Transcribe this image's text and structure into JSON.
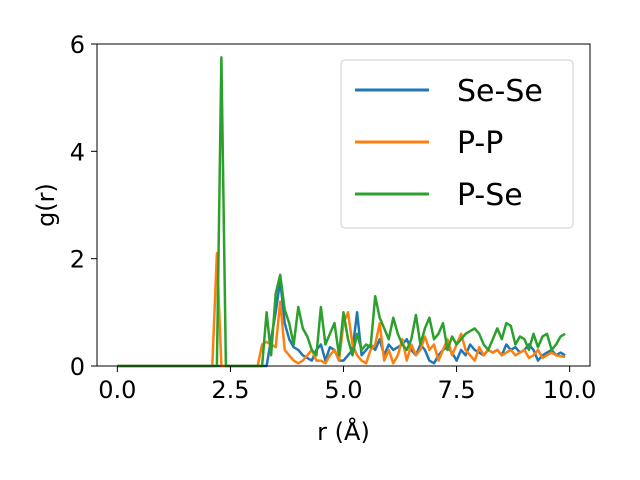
{
  "chart_data": {
    "type": "line",
    "title": "",
    "xlabel": "r (Å)",
    "ylabel": "g(r)",
    "xlim": [
      -0.45,
      10.45
    ],
    "ylim": [
      0,
      6
    ],
    "xticks": [
      0.0,
      2.5,
      5.0,
      7.5,
      10.0
    ],
    "xtick_labels": [
      "0.0",
      "2.5",
      "5.0",
      "7.5",
      "10.0"
    ],
    "yticks": [
      0,
      2,
      4,
      6
    ],
    "ytick_labels": [
      "0",
      "2",
      "4",
      "6"
    ],
    "grid": false,
    "legend_position": "top-right",
    "series": [
      {
        "name": "Se-Se",
        "color": "#1f77b4",
        "x": [
          0.0,
          3.2,
          3.3,
          3.4,
          3.5,
          3.6,
          3.7,
          3.8,
          3.9,
          4.0,
          4.1,
          4.2,
          4.3,
          4.4,
          4.5,
          4.6,
          4.7,
          4.8,
          4.9,
          5.0,
          5.1,
          5.2,
          5.3,
          5.4,
          5.5,
          5.6,
          5.7,
          5.8,
          5.9,
          6.0,
          6.1,
          6.2,
          6.3,
          6.4,
          6.5,
          6.6,
          6.7,
          6.8,
          6.9,
          7.0,
          7.1,
          7.2,
          7.3,
          7.4,
          7.5,
          7.6,
          7.7,
          7.8,
          7.9,
          8.0,
          8.1,
          8.2,
          8.3,
          8.4,
          8.5,
          8.6,
          8.7,
          8.8,
          8.9,
          9.0,
          9.1,
          9.2,
          9.3,
          9.4,
          9.5,
          9.6,
          9.7,
          9.8,
          9.9
        ],
        "y": [
          0.0,
          0.0,
          0.0,
          0.5,
          1.0,
          1.6,
          0.8,
          0.5,
          0.35,
          0.3,
          0.2,
          0.15,
          0.1,
          0.3,
          0.4,
          0.1,
          0.35,
          0.3,
          0.1,
          0.1,
          0.2,
          0.3,
          1.0,
          0.2,
          0.3,
          0.4,
          0.3,
          0.5,
          0.2,
          0.4,
          0.3,
          0.35,
          0.4,
          0.5,
          0.3,
          0.2,
          0.4,
          0.3,
          0.1,
          0.05,
          0.2,
          0.3,
          0.35,
          0.25,
          0.1,
          0.3,
          0.2,
          0.4,
          0.3,
          0.25,
          0.2,
          0.3,
          0.25,
          0.3,
          0.2,
          0.4,
          0.3,
          0.35,
          0.25,
          0.3,
          0.4,
          0.3,
          0.1,
          0.2,
          0.25,
          0.3,
          0.2,
          0.25,
          0.2
        ]
      },
      {
        "name": "P-P",
        "color": "#ff7f0e",
        "x": [
          0.0,
          2.1,
          2.2,
          2.3,
          2.4,
          3.1,
          3.2,
          3.3,
          3.4,
          3.5,
          3.6,
          3.7,
          3.8,
          3.9,
          4.0,
          4.1,
          4.2,
          4.3,
          4.4,
          4.5,
          4.6,
          4.7,
          4.8,
          4.9,
          5.0,
          5.1,
          5.2,
          5.3,
          5.4,
          5.5,
          5.6,
          5.7,
          5.8,
          5.9,
          6.0,
          6.1,
          6.2,
          6.3,
          6.4,
          6.5,
          6.6,
          6.7,
          6.8,
          6.9,
          7.0,
          7.1,
          7.2,
          7.3,
          7.4,
          7.5,
          7.6,
          7.7,
          7.8,
          7.9,
          8.0,
          8.1,
          8.2,
          8.3,
          8.4,
          8.5,
          8.6,
          8.7,
          8.8,
          8.9,
          9.0,
          9.1,
          9.2,
          9.3,
          9.4,
          9.5,
          9.6,
          9.7,
          9.8,
          9.9
        ],
        "y": [
          0.0,
          0.0,
          2.1,
          0.0,
          0.0,
          0.0,
          0.4,
          0.45,
          0.4,
          0.35,
          1.2,
          0.3,
          0.2,
          0.1,
          0.05,
          0.1,
          0.2,
          0.3,
          0.1,
          0.1,
          0.05,
          0.2,
          0.3,
          0.1,
          0.8,
          1.0,
          0.4,
          0.2,
          0.1,
          0.05,
          0.3,
          0.4,
          0.8,
          0.1,
          0.3,
          0.05,
          0.2,
          0.5,
          0.1,
          0.4,
          0.2,
          0.3,
          0.55,
          0.3,
          0.4,
          0.1,
          0.3,
          0.5,
          0.2,
          0.4,
          0.6,
          0.3,
          0.2,
          0.1,
          0.35,
          0.2,
          0.3,
          0.25,
          0.3,
          0.2,
          0.25,
          0.3,
          0.2,
          0.25,
          0.3,
          0.15,
          0.2,
          0.3,
          0.15,
          0.2,
          0.25,
          0.2,
          0.18,
          0.17
        ]
      },
      {
        "name": "P-Se",
        "color": "#2ca02c",
        "x": [
          0.0,
          2.2,
          2.3,
          2.4,
          3.2,
          3.3,
          3.4,
          3.5,
          3.6,
          3.7,
          3.8,
          3.9,
          4.0,
          4.1,
          4.2,
          4.3,
          4.4,
          4.5,
          4.6,
          4.7,
          4.8,
          4.9,
          5.0,
          5.1,
          5.2,
          5.3,
          5.4,
          5.5,
          5.6,
          5.7,
          5.8,
          5.9,
          6.0,
          6.1,
          6.2,
          6.3,
          6.4,
          6.5,
          6.6,
          6.7,
          6.8,
          6.9,
          7.0,
          7.1,
          7.2,
          7.3,
          7.4,
          7.5,
          7.6,
          7.7,
          7.8,
          7.9,
          8.0,
          8.1,
          8.2,
          8.3,
          8.4,
          8.5,
          8.6,
          8.7,
          8.8,
          8.9,
          9.0,
          9.1,
          9.2,
          9.3,
          9.4,
          9.5,
          9.6,
          9.7,
          9.8,
          9.9
        ],
        "y": [
          0.0,
          0.0,
          5.75,
          0.0,
          0.0,
          1.0,
          0.2,
          1.35,
          1.7,
          1.05,
          0.8,
          0.4,
          1.1,
          0.7,
          0.55,
          0.3,
          0.2,
          1.1,
          0.4,
          0.6,
          0.8,
          0.2,
          1.0,
          0.5,
          0.2,
          0.6,
          0.3,
          0.4,
          0.35,
          1.3,
          0.9,
          0.7,
          0.5,
          0.9,
          0.6,
          0.4,
          0.3,
          0.5,
          0.95,
          0.4,
          0.7,
          0.9,
          0.5,
          0.6,
          0.8,
          0.3,
          0.55,
          0.4,
          0.5,
          0.6,
          0.65,
          0.7,
          0.6,
          0.4,
          0.3,
          0.5,
          0.7,
          0.5,
          0.8,
          0.75,
          0.4,
          0.55,
          0.5,
          0.3,
          0.6,
          0.35,
          0.55,
          0.6,
          0.3,
          0.4,
          0.55,
          0.6
        ]
      }
    ]
  }
}
